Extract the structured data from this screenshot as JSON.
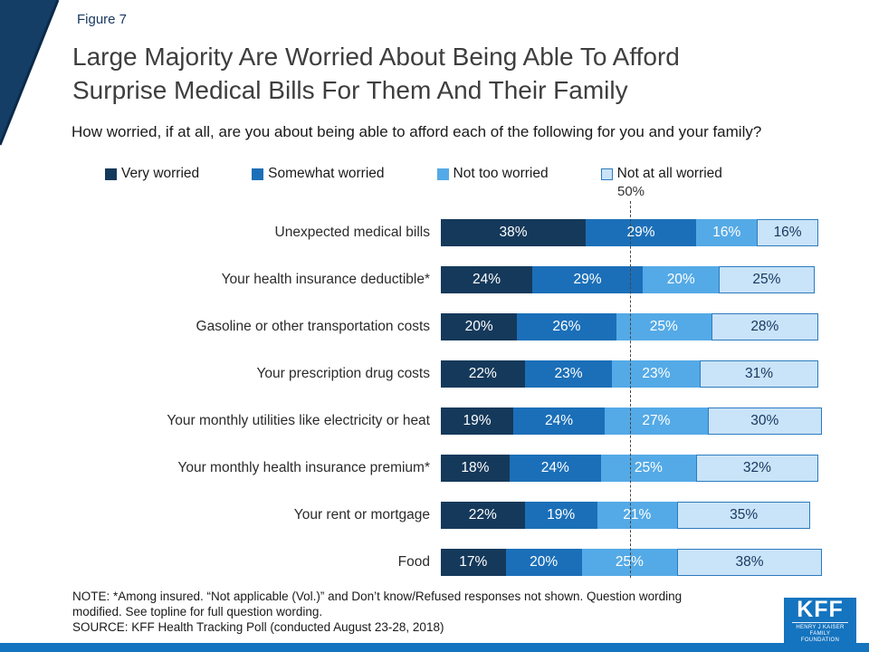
{
  "page": {
    "figure_label": "Figure 7",
    "title_lines": [
      "Large Majority Are Worried About Being Able To Afford",
      "Surprise Medical Bills For Them And Their Family"
    ],
    "subtitle": "How worried, if at all, are you about being able to afford each of the following for you and your family?"
  },
  "colors": {
    "very_worried": "#15395B",
    "somewhat_worried": "#1B6FB8",
    "not_too_worried": "#54AAE6",
    "not_at_all_worried": "#C9E3F8",
    "light_segment_border": "#2B7BC0",
    "brand_blue": "#1574BF",
    "corner_triangle": "#143E66",
    "dark_text": "#17375E"
  },
  "chart_data": {
    "type": "bar",
    "orientation": "horizontal",
    "stacked": true,
    "xlim": [
      0,
      100
    ],
    "grid": false,
    "legend_position": "top",
    "reference_line": {
      "value": 50,
      "label": "50%"
    },
    "categories": [
      "Unexpected medical bills",
      "Your health insurance deductible*",
      "Gasoline or other transportation costs",
      "Your prescription drug costs",
      "Your monthly utilities like electricity or heat",
      "Your monthly health insurance premium*",
      "Your rent or mortgage",
      "Food"
    ],
    "series": [
      {
        "name": "Very worried",
        "values": [
          38,
          24,
          20,
          22,
          19,
          18,
          22,
          17
        ]
      },
      {
        "name": "Somewhat worried",
        "values": [
          29,
          29,
          26,
          23,
          24,
          24,
          19,
          20
        ]
      },
      {
        "name": "Not too worried",
        "values": [
          16,
          20,
          25,
          23,
          27,
          25,
          21,
          25
        ]
      },
      {
        "name": "Not at all worried",
        "values": [
          16,
          25,
          28,
          31,
          30,
          32,
          35,
          38
        ]
      }
    ],
    "value_suffix": "%"
  },
  "footer": {
    "note_lines": [
      "NOTE: *Among insured. “Not applicable (Vol.)” and Don’t know/Refused responses not shown. Question wording",
      "modified. See topline for full question wording."
    ],
    "source": "SOURCE: KFF Health Tracking Poll (conducted August 23-28, 2018)",
    "logo": {
      "text": "KFF",
      "subtext": "HENRY J KAISER FAMILY FOUNDATION"
    }
  }
}
